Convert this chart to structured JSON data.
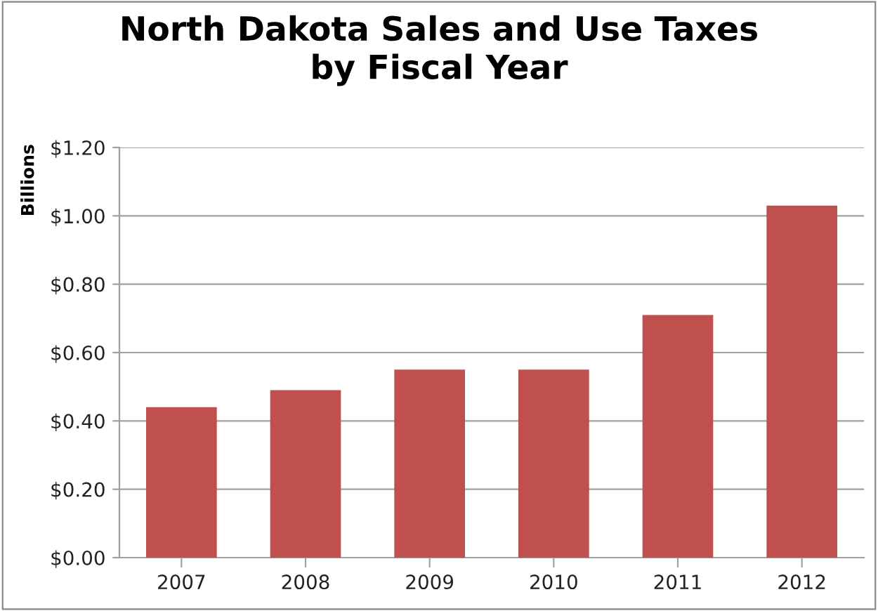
{
  "chart_data": {
    "type": "bar",
    "title": "North Dakota Sales and Use Taxes\nby Fiscal Year",
    "ylabel": "Billions",
    "categories": [
      "2007",
      "2008",
      "2009",
      "2010",
      "2011",
      "2012"
    ],
    "values": [
      0.44,
      0.49,
      0.55,
      0.55,
      0.71,
      1.03
    ],
    "color": "#c0504d",
    "ylim": [
      0,
      1.2
    ],
    "yticks": [
      {
        "value": 0,
        "label": "$0.00"
      },
      {
        "value": 0.2,
        "label": "$0.20"
      },
      {
        "value": 0.4,
        "label": "$0.40"
      },
      {
        "value": 0.6,
        "label": "$0.60"
      },
      {
        "value": 0.8,
        "label": "$0.80"
      },
      {
        "value": 1.0,
        "label": "$1.00"
      },
      {
        "value": 1.2,
        "label": "$1.20"
      }
    ],
    "grid": "y",
    "legend": false
  }
}
